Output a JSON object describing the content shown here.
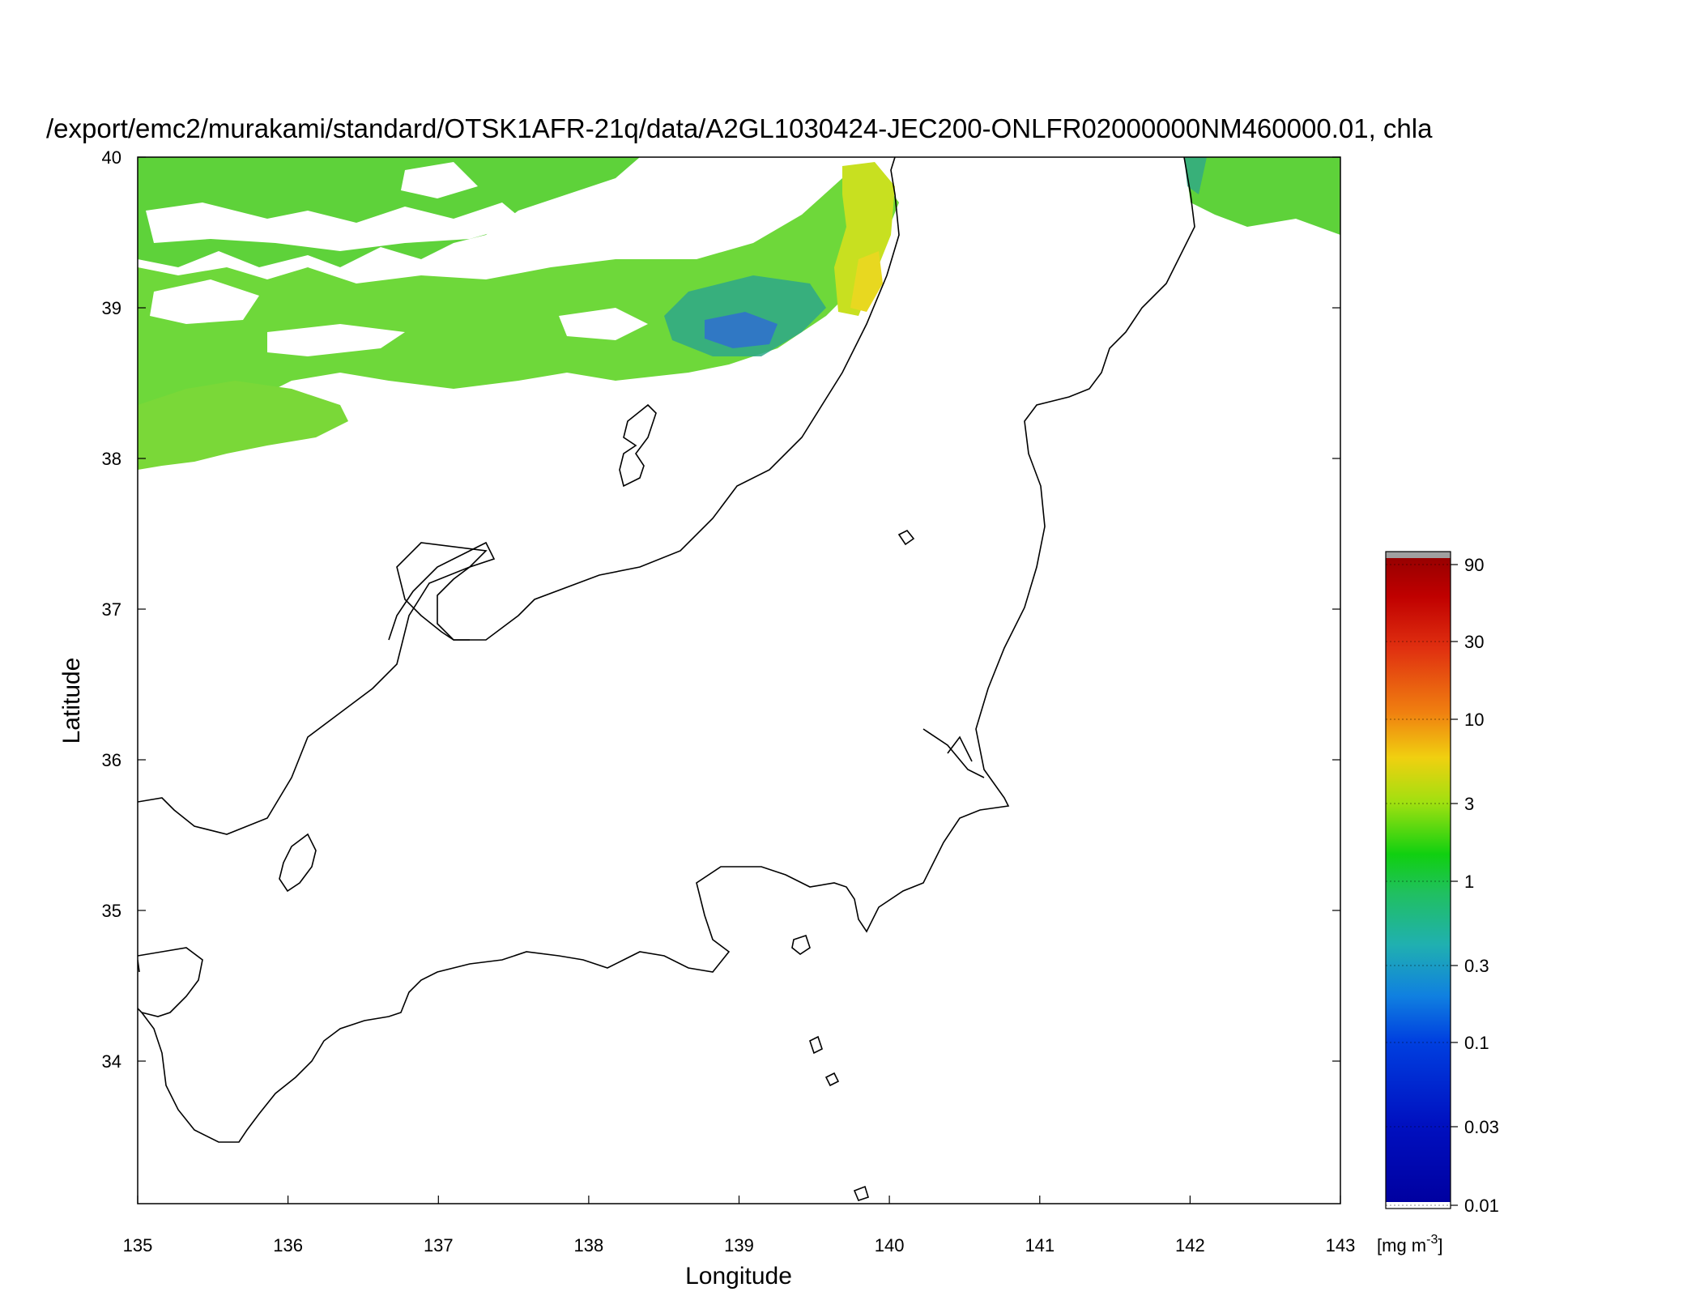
{
  "title": "/export/emc2/murakami/standard/OTSK1AFR-21q/data/A2GL1030424-JEC200-ONLFR02000000NM460000.01, chla",
  "map": {
    "lon_range": [
      135,
      143
    ],
    "lat_range": [
      33.0,
      40.0
    ],
    "x_ticks": [
      "135",
      "136",
      "137",
      "138",
      "139",
      "140",
      "141",
      "142",
      "143"
    ],
    "y_ticks": [
      "40",
      "39",
      "38",
      "37",
      "36",
      "35",
      "34"
    ],
    "xlabel": "Longitude",
    "ylabel": "Latitude"
  },
  "colorbar": {
    "ticks": [
      "90",
      "30",
      "10",
      "3",
      "1",
      "0.3",
      "0.1",
      "0.03",
      "0.01"
    ],
    "unit_main": "[mg m",
    "unit_sup": "-3",
    "unit_end": "]",
    "colors": [
      "#0000a0",
      "#0030d8",
      "#1080e0",
      "#20b0b0",
      "#10d010",
      "#a0e010",
      "#f0d010",
      "#f08010",
      "#e03010",
      "#980000"
    ]
  },
  "data_colors": {
    "chl_high": "#c8e020",
    "chl_mid": "#5ed23a",
    "chl_low": "#2ea88a",
    "chl_vlow": "#2f6fd0"
  }
}
